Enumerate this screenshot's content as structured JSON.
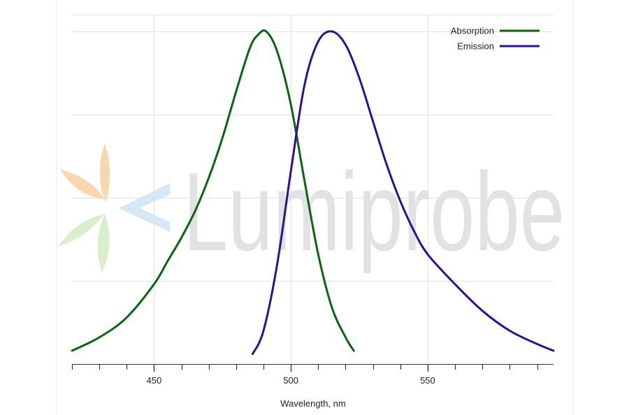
{
  "chart_data": {
    "type": "line",
    "xlabel": "Wavelength, nm",
    "ylabel": "",
    "xlim": [
      420,
      596
    ],
    "ylim": [
      0,
      1
    ],
    "x_ticks": [
      450,
      500,
      550
    ],
    "minor_tick_step": 10,
    "y_gridlines": [
      0,
      0.25,
      0.5,
      0.75,
      1.0
    ],
    "grid": true,
    "legend_position": "top-right",
    "series": [
      {
        "name": "Absorption",
        "color": "#0a6410",
        "x": [
          420,
          430,
          440,
          450,
          455,
          460,
          465,
          470,
          475,
          480,
          485,
          488,
          491,
          495,
          500,
          505,
          510,
          515,
          520,
          523
        ],
        "y": [
          0.04,
          0.08,
          0.14,
          0.24,
          0.31,
          0.38,
          0.46,
          0.56,
          0.68,
          0.82,
          0.95,
          0.99,
          1.0,
          0.94,
          0.78,
          0.55,
          0.33,
          0.17,
          0.08,
          0.04
        ]
      },
      {
        "name": "Emission",
        "color": "#2e0f9a",
        "x": [
          486,
          490,
          495,
          500,
          505,
          510,
          515,
          520,
          525,
          530,
          535,
          540,
          545,
          550,
          560,
          570,
          580,
          590,
          596
        ],
        "y": [
          0.03,
          0.1,
          0.3,
          0.58,
          0.84,
          0.97,
          1.0,
          0.96,
          0.86,
          0.73,
          0.6,
          0.49,
          0.4,
          0.33,
          0.24,
          0.16,
          0.1,
          0.06,
          0.04
        ]
      }
    ]
  },
  "watermark": {
    "text": "Lumiprobe",
    "ray_colors": [
      "#f7d3a6",
      "#cfe6f5",
      "#d7ecc4"
    ]
  }
}
